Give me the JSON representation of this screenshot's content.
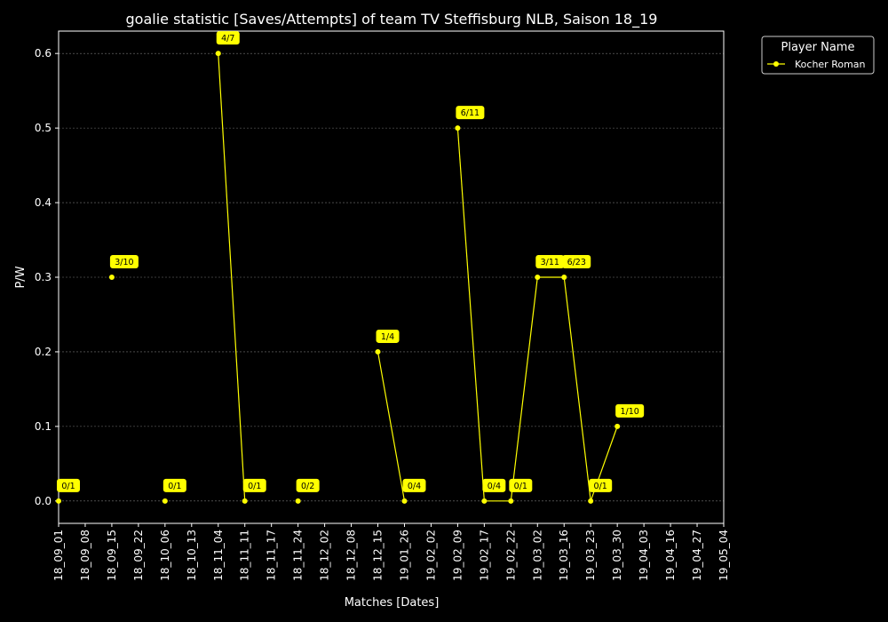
{
  "chart_data": {
    "type": "line",
    "title": "goalie statistic [Saves/Attempts] of team TV Steffisburg NLB, Saison 18_19",
    "xlabel": "Matches [Dates]",
    "ylabel": "P/W",
    "x_ticks": [
      "18_09_01",
      "18_09_08",
      "18_09_15",
      "18_09_22",
      "18_10_06",
      "18_10_13",
      "18_11_04",
      "18_11_11",
      "18_11_17",
      "18_11_24",
      "18_12_02",
      "18_12_08",
      "18_12_15",
      "19_01_26",
      "19_02_02",
      "19_02_09",
      "19_02_17",
      "19_02_22",
      "19_03_02",
      "19_03_16",
      "19_03_23",
      "19_03_30",
      "19_04_03",
      "19_04_16",
      "19_04_27",
      "19_05_04"
    ],
    "y_ticks": [
      "0.0",
      "0.1",
      "0.2",
      "0.3",
      "0.4",
      "0.5",
      "0.6"
    ],
    "ylim": [
      -0.03,
      0.63
    ],
    "grid": "horizontal dotted",
    "legend_title": "Player Name",
    "legend_position": "upper-right outside",
    "series": [
      {
        "name": "Kocher Roman",
        "color": "#ffff00",
        "points": [
          {
            "x": "18_09_01",
            "y": 0.0,
            "label": "0/1"
          },
          {
            "x": "18_09_15",
            "y": 0.3,
            "label": "3/10"
          },
          {
            "x": "18_10_06",
            "y": 0.0,
            "label": "0/1"
          },
          {
            "x": "18_11_04",
            "y": 0.6,
            "label": "4/7"
          },
          {
            "x": "18_11_11",
            "y": 0.0,
            "label": "0/1"
          },
          {
            "x": "18_11_24",
            "y": 0.0,
            "label": "0/2"
          },
          {
            "x": "18_12_15",
            "y": 0.2,
            "label": "1/4"
          },
          {
            "x": "19_01_26",
            "y": 0.0,
            "label": "0/4"
          },
          {
            "x": "19_02_09",
            "y": 0.5,
            "label": "6/11"
          },
          {
            "x": "19_02_17",
            "y": 0.0,
            "label": "0/4"
          },
          {
            "x": "19_02_22",
            "y": 0.0,
            "label": "0/1"
          },
          {
            "x": "19_03_02",
            "y": 0.3,
            "label": "3/11"
          },
          {
            "x": "19_03_16",
            "y": 0.3,
            "label": "6/23"
          },
          {
            "x": "19_03_23",
            "y": 0.0,
            "label": "0/1"
          },
          {
            "x": "19_03_30",
            "y": 0.1,
            "label": "1/10"
          }
        ],
        "segments": [
          [
            "18_11_04",
            "18_11_11"
          ],
          [
            "18_12_15",
            "19_01_26"
          ],
          [
            "19_02_09",
            "19_02_17"
          ],
          [
            "19_02_17",
            "19_02_22"
          ],
          [
            "19_02_22",
            "19_03_02"
          ],
          [
            "19_03_02",
            "19_03_16"
          ],
          [
            "19_03_16",
            "19_03_23"
          ],
          [
            "19_03_23",
            "19_03_30"
          ]
        ]
      }
    ]
  }
}
